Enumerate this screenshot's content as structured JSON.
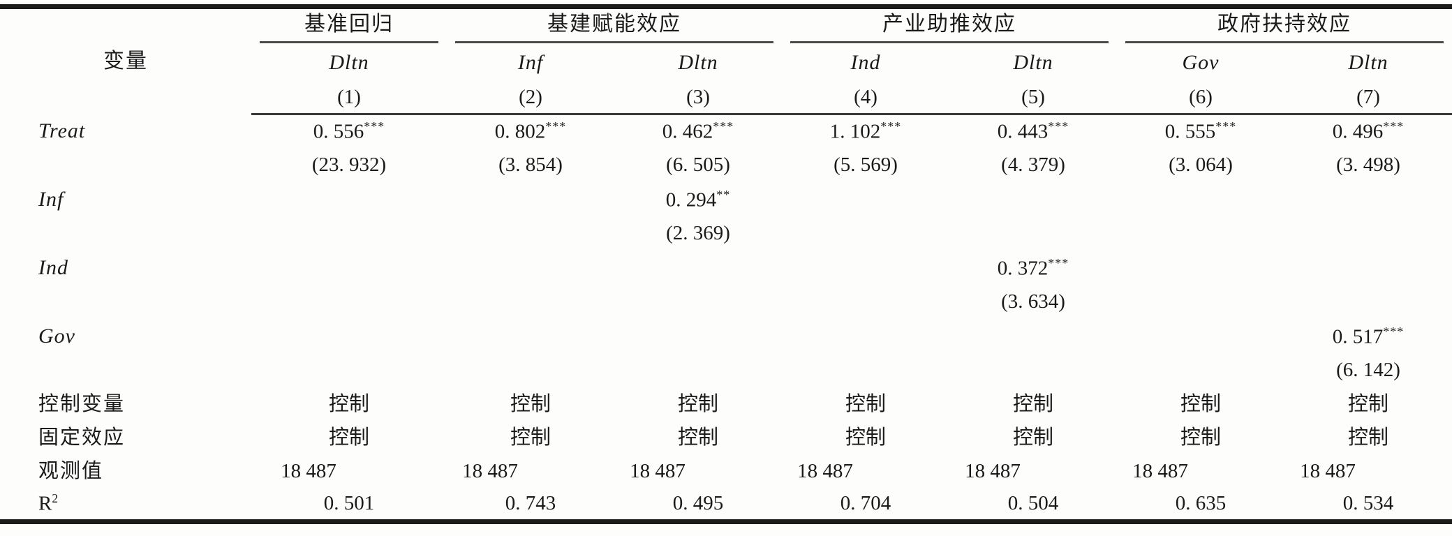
{
  "table": {
    "variable_header": "变量",
    "groups": [
      {
        "label": "基准回归"
      },
      {
        "label": "基建赋能效应"
      },
      {
        "label": "产业助推效应"
      },
      {
        "label": "政府扶持效应"
      }
    ],
    "dep_vars": [
      "Dltn",
      "Inf",
      "Dltn",
      "Ind",
      "Dltn",
      "Gov",
      "Dltn"
    ],
    "col_nums": [
      "(1)",
      "(2)",
      "(3)",
      "(4)",
      "(5)",
      "(6)",
      "(7)"
    ],
    "coef_rows": [
      {
        "label": "Treat",
        "coefs": [
          "0. 556",
          "0. 802",
          "0. 462",
          "1. 102",
          "0. 443",
          "0. 555",
          "0. 496"
        ],
        "stars": [
          "***",
          "***",
          "***",
          "***",
          "***",
          "***",
          "***"
        ],
        "tstats": [
          "(23. 932)",
          "(3. 854)",
          "(6. 505)",
          "(5. 569)",
          "(4. 379)",
          "(3. 064)",
          "(3. 498)"
        ]
      },
      {
        "label": "Inf",
        "coefs": [
          "",
          "",
          "0. 294",
          "",
          "",
          "",
          ""
        ],
        "stars": [
          "",
          "",
          "**",
          "",
          "",
          "",
          ""
        ],
        "tstats": [
          "",
          "",
          "(2. 369)",
          "",
          "",
          "",
          ""
        ]
      },
      {
        "label": "Ind",
        "coefs": [
          "",
          "",
          "",
          "",
          "0. 372",
          "",
          ""
        ],
        "stars": [
          "",
          "",
          "",
          "",
          "***",
          "",
          ""
        ],
        "tstats": [
          "",
          "",
          "",
          "",
          "(3. 634)",
          "",
          ""
        ]
      },
      {
        "label": "Gov",
        "coefs": [
          "",
          "",
          "",
          "",
          "",
          "",
          "0. 517"
        ],
        "stars": [
          "",
          "",
          "",
          "",
          "",
          "",
          "***"
        ],
        "tstats": [
          "",
          "",
          "",
          "",
          "",
          "",
          "(6. 142)"
        ]
      }
    ],
    "summary_rows": {
      "controls": {
        "label": "控制变量",
        "values": [
          "控制",
          "控制",
          "控制",
          "控制",
          "控制",
          "控制",
          "控制"
        ]
      },
      "fixed_effects": {
        "label": "固定效应",
        "values": [
          "控制",
          "控制",
          "控制",
          "控制",
          "控制",
          "控制",
          "控制"
        ]
      },
      "observations": {
        "label": "观测值",
        "values": [
          "18 487",
          "18 487",
          "18 487",
          "18 487",
          "18 487",
          "18 487",
          "18 487"
        ]
      },
      "r_squared": {
        "label_base": "R",
        "label_sup": "2",
        "values": [
          "0. 501",
          "0. 743",
          "0. 495",
          "0. 704",
          "0. 504",
          "0. 635",
          "0. 534"
        ]
      }
    }
  }
}
